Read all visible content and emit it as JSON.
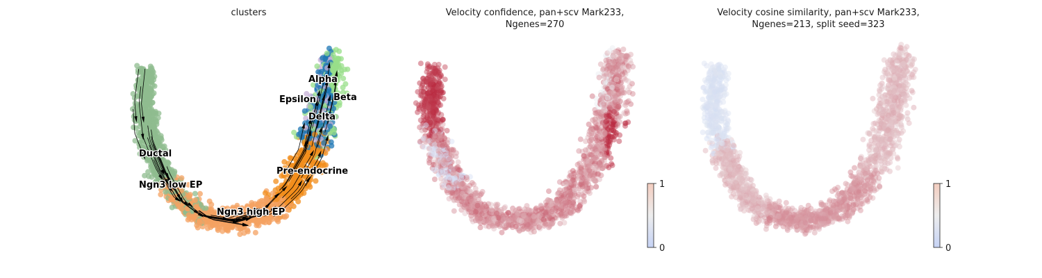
{
  "chart_data": [
    {
      "type": "scatter",
      "title": "clusters",
      "clusters": [
        {
          "name": "Ductal",
          "color": "#8fbc8f"
        },
        {
          "name": "Ngn3 low EP",
          "color": "#8fbc8f"
        },
        {
          "name": "Ngn3 high EP",
          "color": "#f4a261"
        },
        {
          "name": "Pre-endocrine",
          "color": "#f28e1c"
        },
        {
          "name": "Alpha",
          "color": "#1f77b4"
        },
        {
          "name": "Beta",
          "color": "#98df8a"
        },
        {
          "name": "Delta",
          "color": "#c5b0d5"
        },
        {
          "name": "Epsilon",
          "color": "#c5b0d5"
        }
      ],
      "streamlines": true,
      "axes": "off"
    },
    {
      "type": "scatter",
      "title_line1": "Velocity confidence, pan+scv Mark233,",
      "title_line2": "Ngenes=270",
      "colormap": "coolwarm",
      "colorbar": {
        "min": 0,
        "max": 1,
        "ticks": [
          "1",
          "0"
        ]
      },
      "axes": "off"
    },
    {
      "type": "scatter",
      "title_line1": "Velocity cosine similarity, pan+scv Mark233,",
      "title_line2": "Ngenes=213, split seed=323",
      "colormap": "coolwarm",
      "colorbar": {
        "min": 0,
        "max": 1,
        "ticks": [
          "1",
          "0"
        ]
      },
      "axes": "off"
    }
  ]
}
